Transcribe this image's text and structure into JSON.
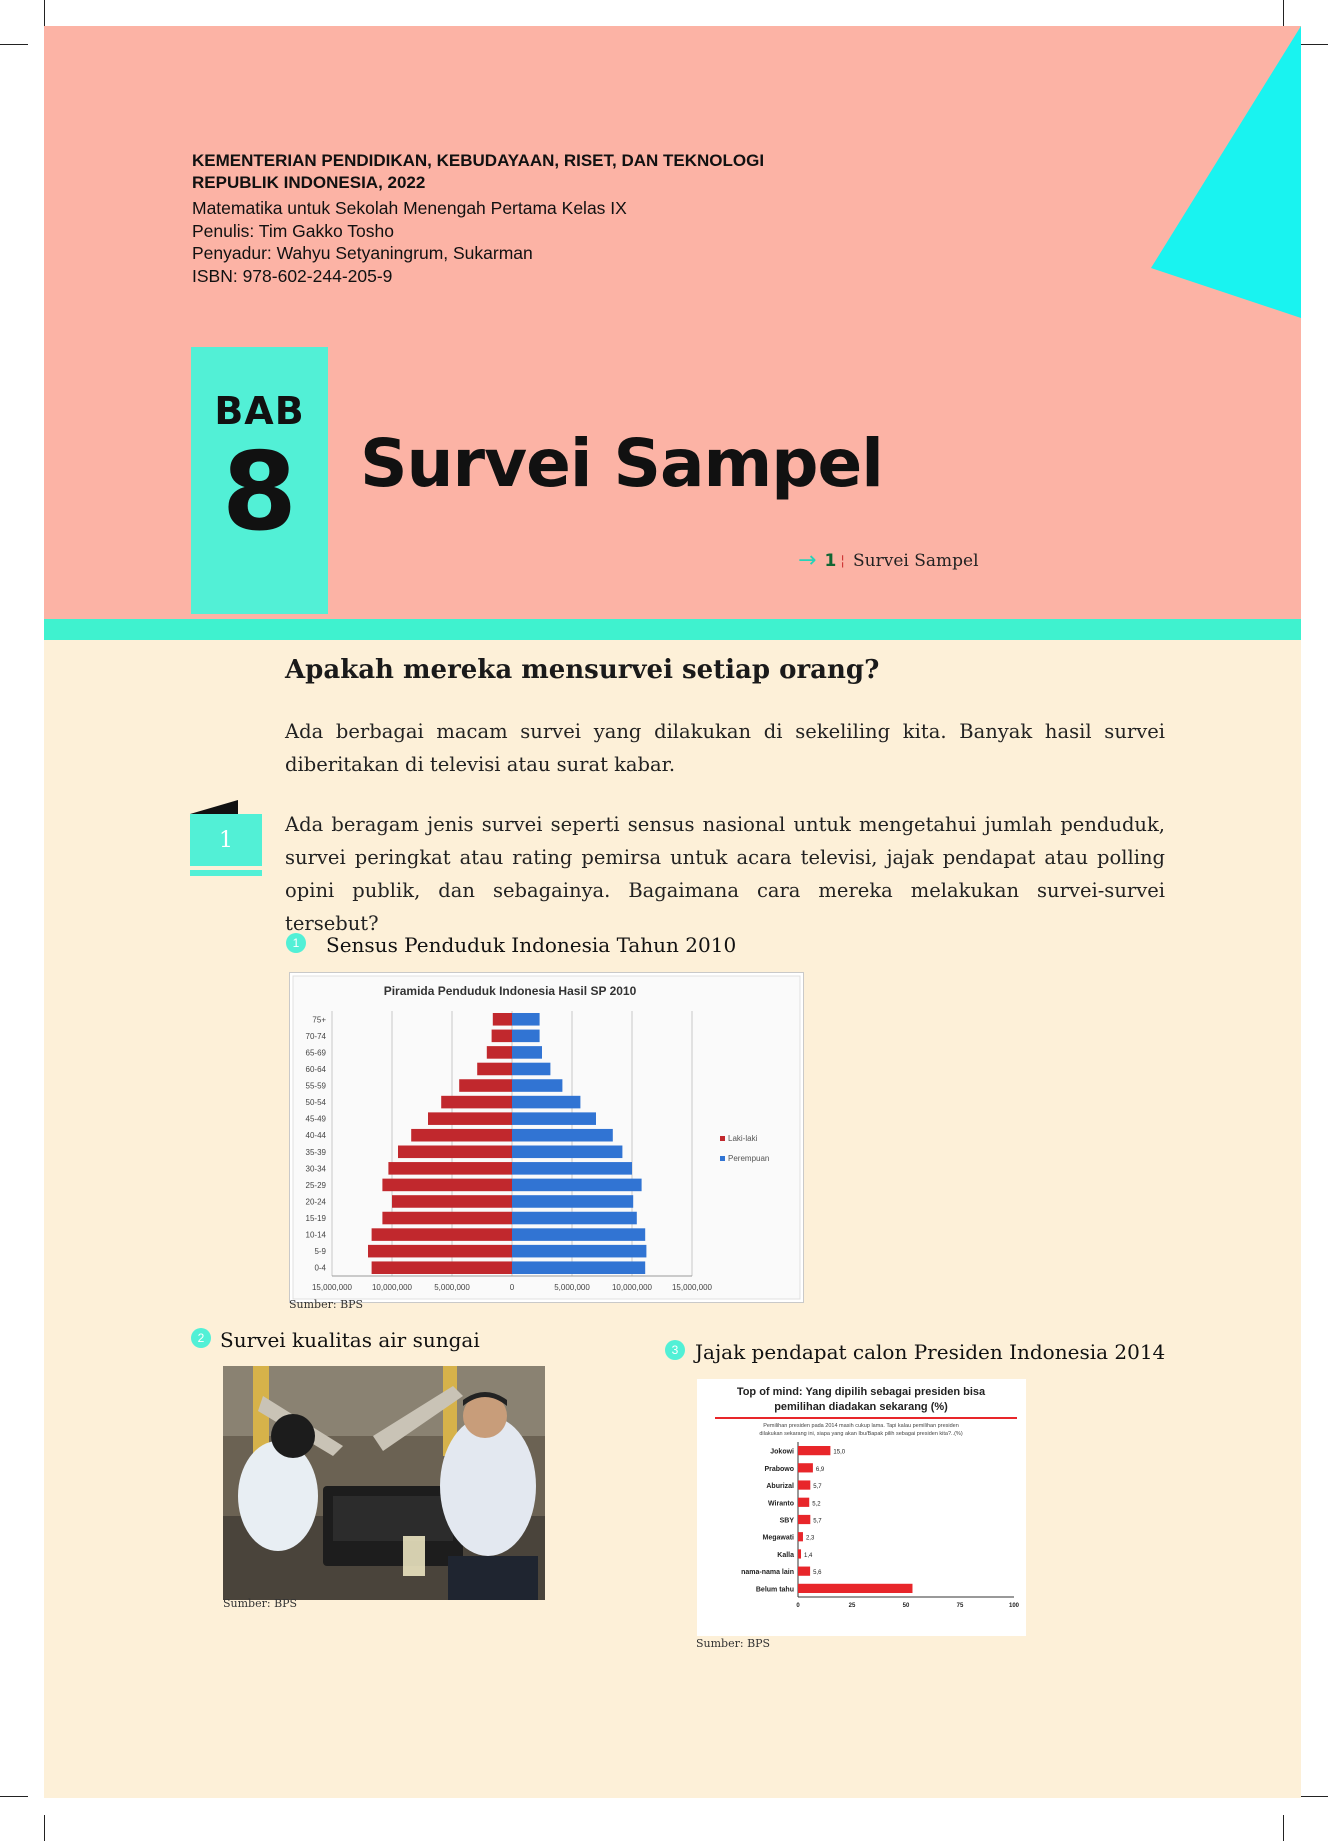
{
  "publisher": {
    "line1": "KEMENTERIAN PENDIDIKAN, KEBUDAYAAN, RISET, DAN TEKNOLOGI",
    "line2": "REPUBLIK INDONESIA, 2022"
  },
  "book": {
    "title_line": "Matematika untuk Sekolah Menengah Pertama Kelas IX",
    "author_line": "Penulis: Tim Gakko Tosho",
    "adapter_line": "Penyadur: Wahyu Setyaningrum, Sukarman",
    "isbn_line": "ISBN: 978-602-244-205-9"
  },
  "chapter": {
    "label": "BAB",
    "number": "8",
    "title": "Survei Sampel"
  },
  "toc": {
    "number": "1",
    "label": "Survei Sampel"
  },
  "section": {
    "question": "Apakah mereka mensurvei setiap orang?",
    "intro": "Ada berbagai macam survei yang dilakukan di sekeliling kita. Banyak hasil survei diberitakan di televisi atau surat kabar.",
    "badge_number": "1",
    "body": "Ada beragam jenis survei seperti sensus nasional untuk mengetahui jumlah penduduk, survei peringkat atau rating pemirsa untuk acara televisi, jajak pendapat atau polling opini publik, dan sebagainya. Bagaimana cara mereka melakukan survei-survei tersebut?"
  },
  "items": [
    {
      "number": "1",
      "label": "Sensus Penduduk Indonesia Tahun 2010",
      "source": "Sumber: BPS"
    },
    {
      "number": "2",
      "label": "Survei kualitas air sungai",
      "source": "Sumber: BPS"
    },
    {
      "number": "3",
      "label": "Jajak pendapat calon Presiden Indonesia 2014",
      "source": "Sumber: BPS"
    }
  ],
  "colors": {
    "header_pink": "#fcb3a5",
    "accent_teal": "#52f0d6",
    "cyan_triangle": "#19f3f0",
    "body_cream": "#fdf0d8",
    "male_red": "#c1282d",
    "female_blue": "#3174d3",
    "poll_red": "#e8262a"
  },
  "chart_data": [
    {
      "type": "bar",
      "orientation": "horizontal",
      "title": "Piramida Penduduk Indonesia Hasil SP 2010",
      "categories": [
        "75+",
        "70-74",
        "65-69",
        "60-64",
        "55-59",
        "50-54",
        "45-49",
        "40-44",
        "35-39",
        "30-34",
        "25-29",
        "20-24",
        "15-19",
        "10-14",
        "5-9",
        "0-4"
      ],
      "series": [
        {
          "name": "Laki-laki",
          "values": [
            1600000,
            1700000,
            2100000,
            2900000,
            4400000,
            5900000,
            7000000,
            8400000,
            9500000,
            10300000,
            10800000,
            10000000,
            10800000,
            11700000,
            12000000,
            11700000
          ]
        },
        {
          "name": "Perempuan",
          "values": [
            2300000,
            2300000,
            2500000,
            3200000,
            4200000,
            5700000,
            7000000,
            8400000,
            9200000,
            10000000,
            10800000,
            10100000,
            10400000,
            11100000,
            11200000,
            11100000
          ]
        }
      ],
      "x_ticks": [
        "15,000,000",
        "10,000,000",
        "5,000,000",
        "0",
        "5,000,000",
        "10,000,000",
        "15,000,000"
      ],
      "xlim": [
        -15000000,
        15000000
      ],
      "legend": "right",
      "grid": true
    },
    {
      "type": "bar",
      "orientation": "horizontal",
      "title": "Top of mind: Yang dipilih sebagai presiden bisa pemilihan diadakan sekarang (%)",
      "subtitle": "Pemilihan presiden pada 2014 masih cukup lama. Tapi kalau pemilihan presiden dilakukan sekarang ini, siapa yang akan Ibu/Bapak pilih sebagai presiden kita?..(%)",
      "categories": [
        "Jokowi",
        "Prabowo",
        "Aburizal",
        "Wiranto",
        "SBY",
        "Megawati",
        "Kalla",
        "nama-nama lain",
        "Belum tahu"
      ],
      "values": [
        15.0,
        6.9,
        5.7,
        5.2,
        5.7,
        2.3,
        1.4,
        5.6,
        53.0
      ],
      "value_labels": [
        "15,0",
        "6,9",
        "5,7",
        "5,2",
        "5,7",
        "2,3",
        "1,4",
        "5,6",
        ""
      ],
      "x_ticks": [
        "0",
        "25",
        "50",
        "75",
        "100"
      ],
      "xlim": [
        0,
        100
      ]
    }
  ]
}
